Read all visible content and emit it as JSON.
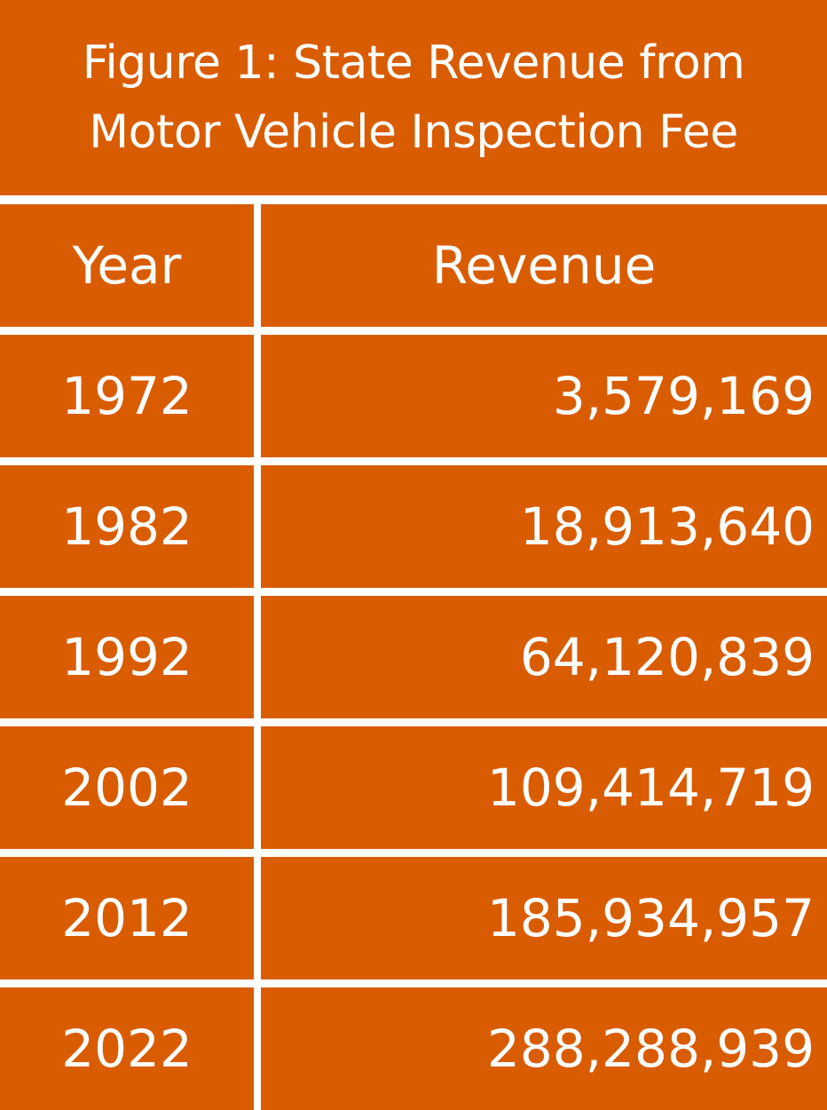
{
  "title_lines": [
    "Figure 1: State Revenue from",
    "Motor Vehicle Inspection Fee"
  ],
  "colors": {
    "cell_fill": "#D95C00",
    "text": "#FFFFFF",
    "grid_lines": "#FFFFFF"
  },
  "chart_data": {
    "type": "table",
    "title": "Figure 1: State Revenue from Motor Vehicle Inspection Fee",
    "columns": [
      "Year",
      "Revenue"
    ],
    "rows": [
      [
        "1972",
        "3,579,169"
      ],
      [
        "1982",
        "18,913,640"
      ],
      [
        "1992",
        "64,120,839"
      ],
      [
        "2002",
        "109,414,719"
      ],
      [
        "2012",
        "185,934,957"
      ],
      [
        "2022",
        "288,288,939"
      ]
    ]
  }
}
